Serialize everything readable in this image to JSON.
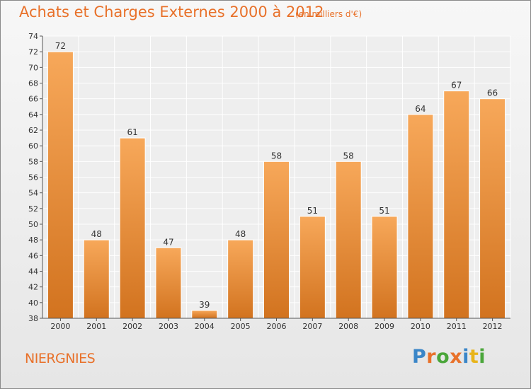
{
  "header": {
    "title": "Achats et Charges Externes 2000 à 2012",
    "unit": "(en milliers d'€)"
  },
  "footer": {
    "commune": "NIERGNIES",
    "brand_letters": [
      "P",
      "r",
      "o",
      "x",
      "i",
      "t",
      "i"
    ]
  },
  "colors": {
    "accent": "#e8712a",
    "bar_light": "#f7a85a",
    "bar_dark": "#d2731f"
  },
  "chart_data": {
    "type": "bar",
    "title": "Achats et Charges Externes 2000 à 2012",
    "subtitle": "(en milliers d'€)",
    "categories": [
      "2000",
      "2001",
      "2002",
      "2003",
      "2004",
      "2005",
      "2006",
      "2007",
      "2008",
      "2009",
      "2010",
      "2011",
      "2012"
    ],
    "values": [
      72,
      48,
      61,
      47,
      39,
      48,
      58,
      51,
      58,
      51,
      64,
      67,
      66
    ],
    "ylim": [
      38,
      74
    ],
    "yticks": [
      38,
      40,
      42,
      44,
      46,
      48,
      50,
      52,
      54,
      56,
      58,
      60,
      62,
      64,
      66,
      68,
      70,
      72,
      74
    ],
    "grid": true,
    "legend": "none"
  }
}
